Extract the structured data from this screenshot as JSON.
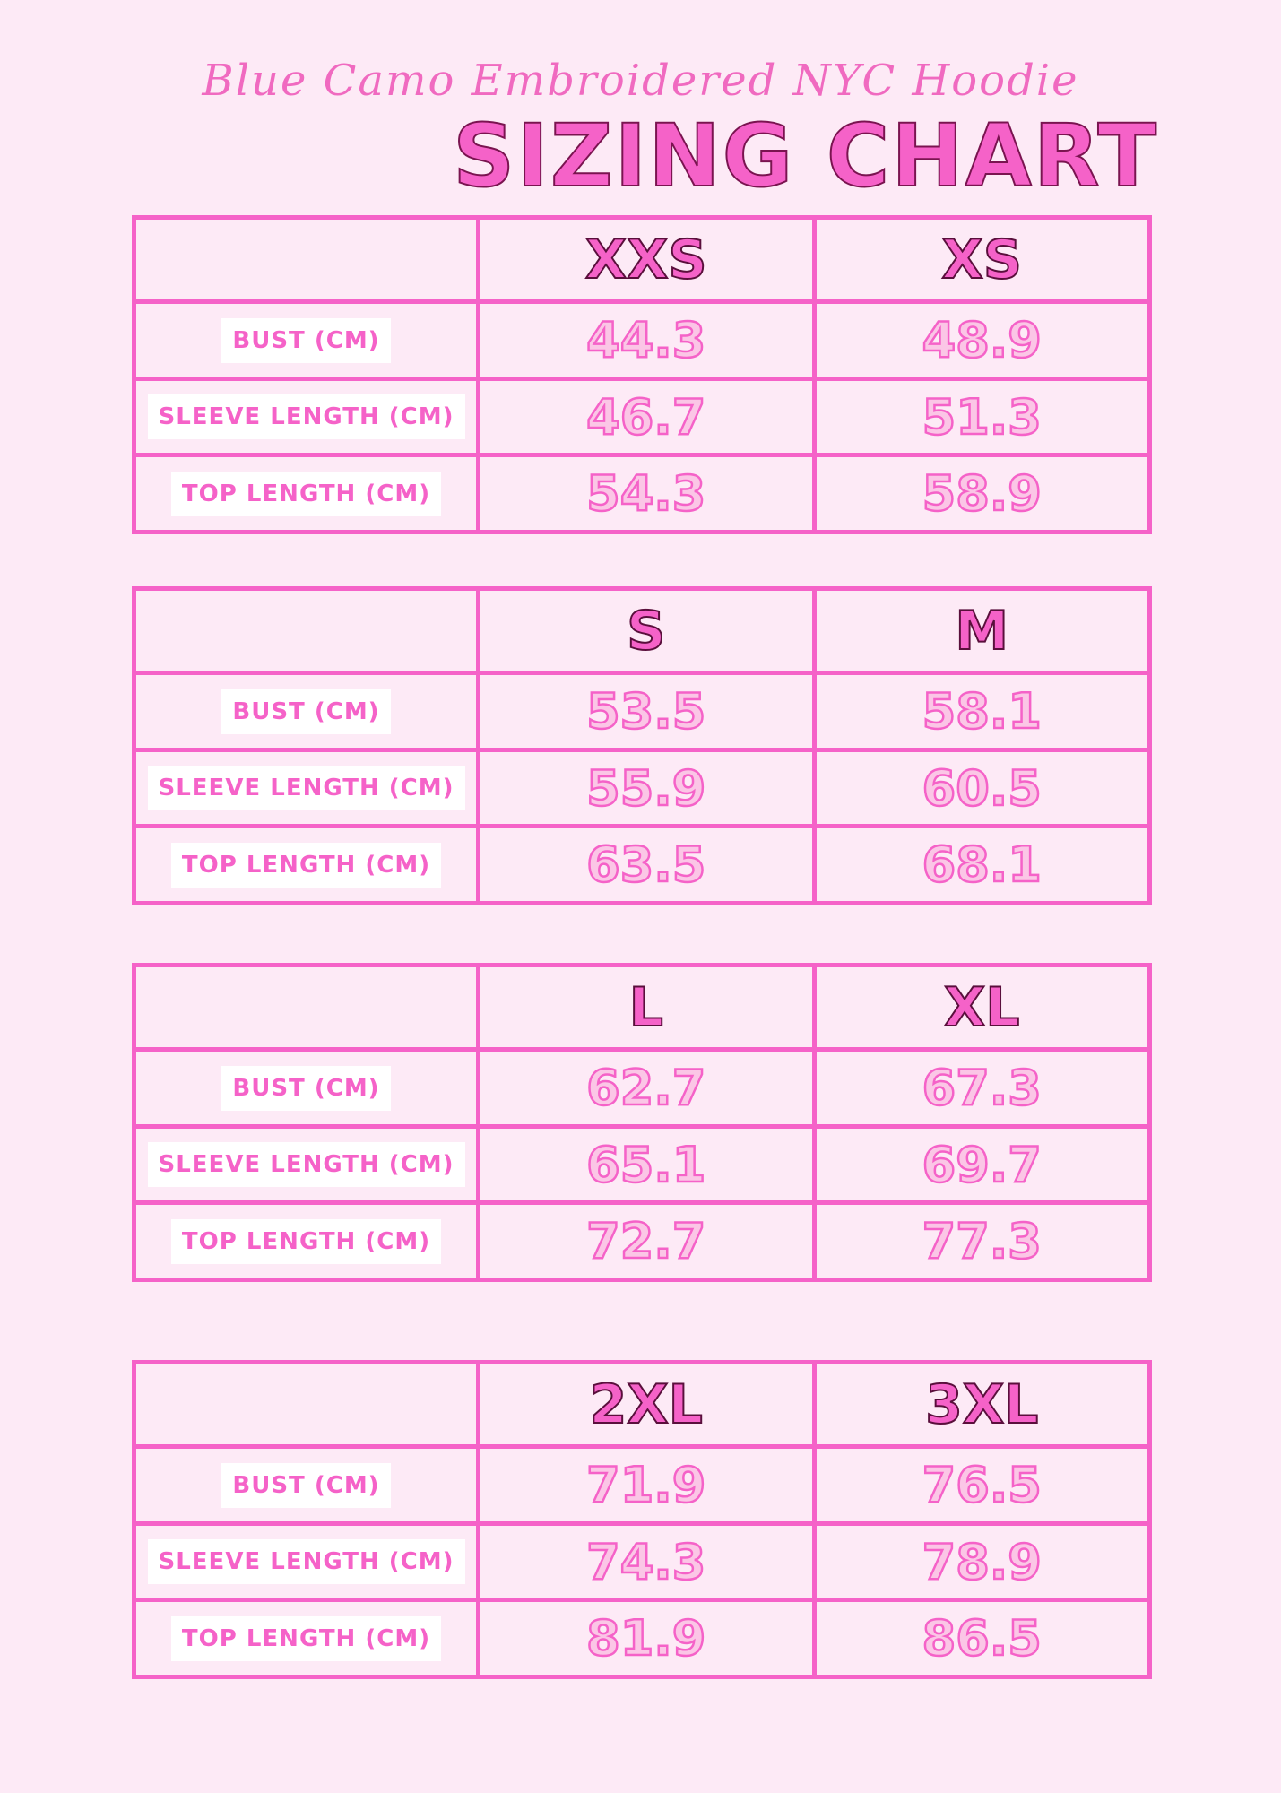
{
  "header": {
    "subtitle": "Blue Camo Embroidered NYC Hoodie",
    "title": "SIZING CHART"
  },
  "tables": [
    {
      "columns": [
        "XXS",
        "XS"
      ],
      "rows": [
        {
          "label": "BUST (CM)",
          "values": [
            "44.3",
            "48.9"
          ]
        },
        {
          "label": "SLEEVE LENGTH (CM)",
          "values": [
            "46.7",
            "51.3"
          ]
        },
        {
          "label": "TOP LENGTH (CM)",
          "values": [
            "54.3",
            "58.9"
          ]
        }
      ]
    },
    {
      "columns": [
        "S",
        "M"
      ],
      "rows": [
        {
          "label": "BUST (CM)",
          "values": [
            "53.5",
            "58.1"
          ]
        },
        {
          "label": "SLEEVE LENGTH (CM)",
          "values": [
            "55.9",
            "60.5"
          ]
        },
        {
          "label": "TOP LENGTH (CM)",
          "values": [
            "63.5",
            "68.1"
          ]
        }
      ]
    },
    {
      "columns": [
        "L",
        "XL"
      ],
      "rows": [
        {
          "label": "BUST (CM)",
          "values": [
            "62.7",
            "67.3"
          ]
        },
        {
          "label": "SLEEVE LENGTH (CM)",
          "values": [
            "65.1",
            "69.7"
          ]
        },
        {
          "label": "TOP LENGTH (CM)",
          "values": [
            "72.7",
            "77.3"
          ]
        }
      ]
    },
    {
      "columns": [
        "2XL",
        "3XL"
      ],
      "rows": [
        {
          "label": "BUST (CM)",
          "values": [
            "71.9",
            "76.5"
          ]
        },
        {
          "label": "SLEEVE LENGTH (CM)",
          "values": [
            "74.3",
            "78.9"
          ]
        },
        {
          "label": "TOP LENGTH (CM)",
          "values": [
            "81.9",
            "86.5"
          ]
        }
      ]
    }
  ]
}
